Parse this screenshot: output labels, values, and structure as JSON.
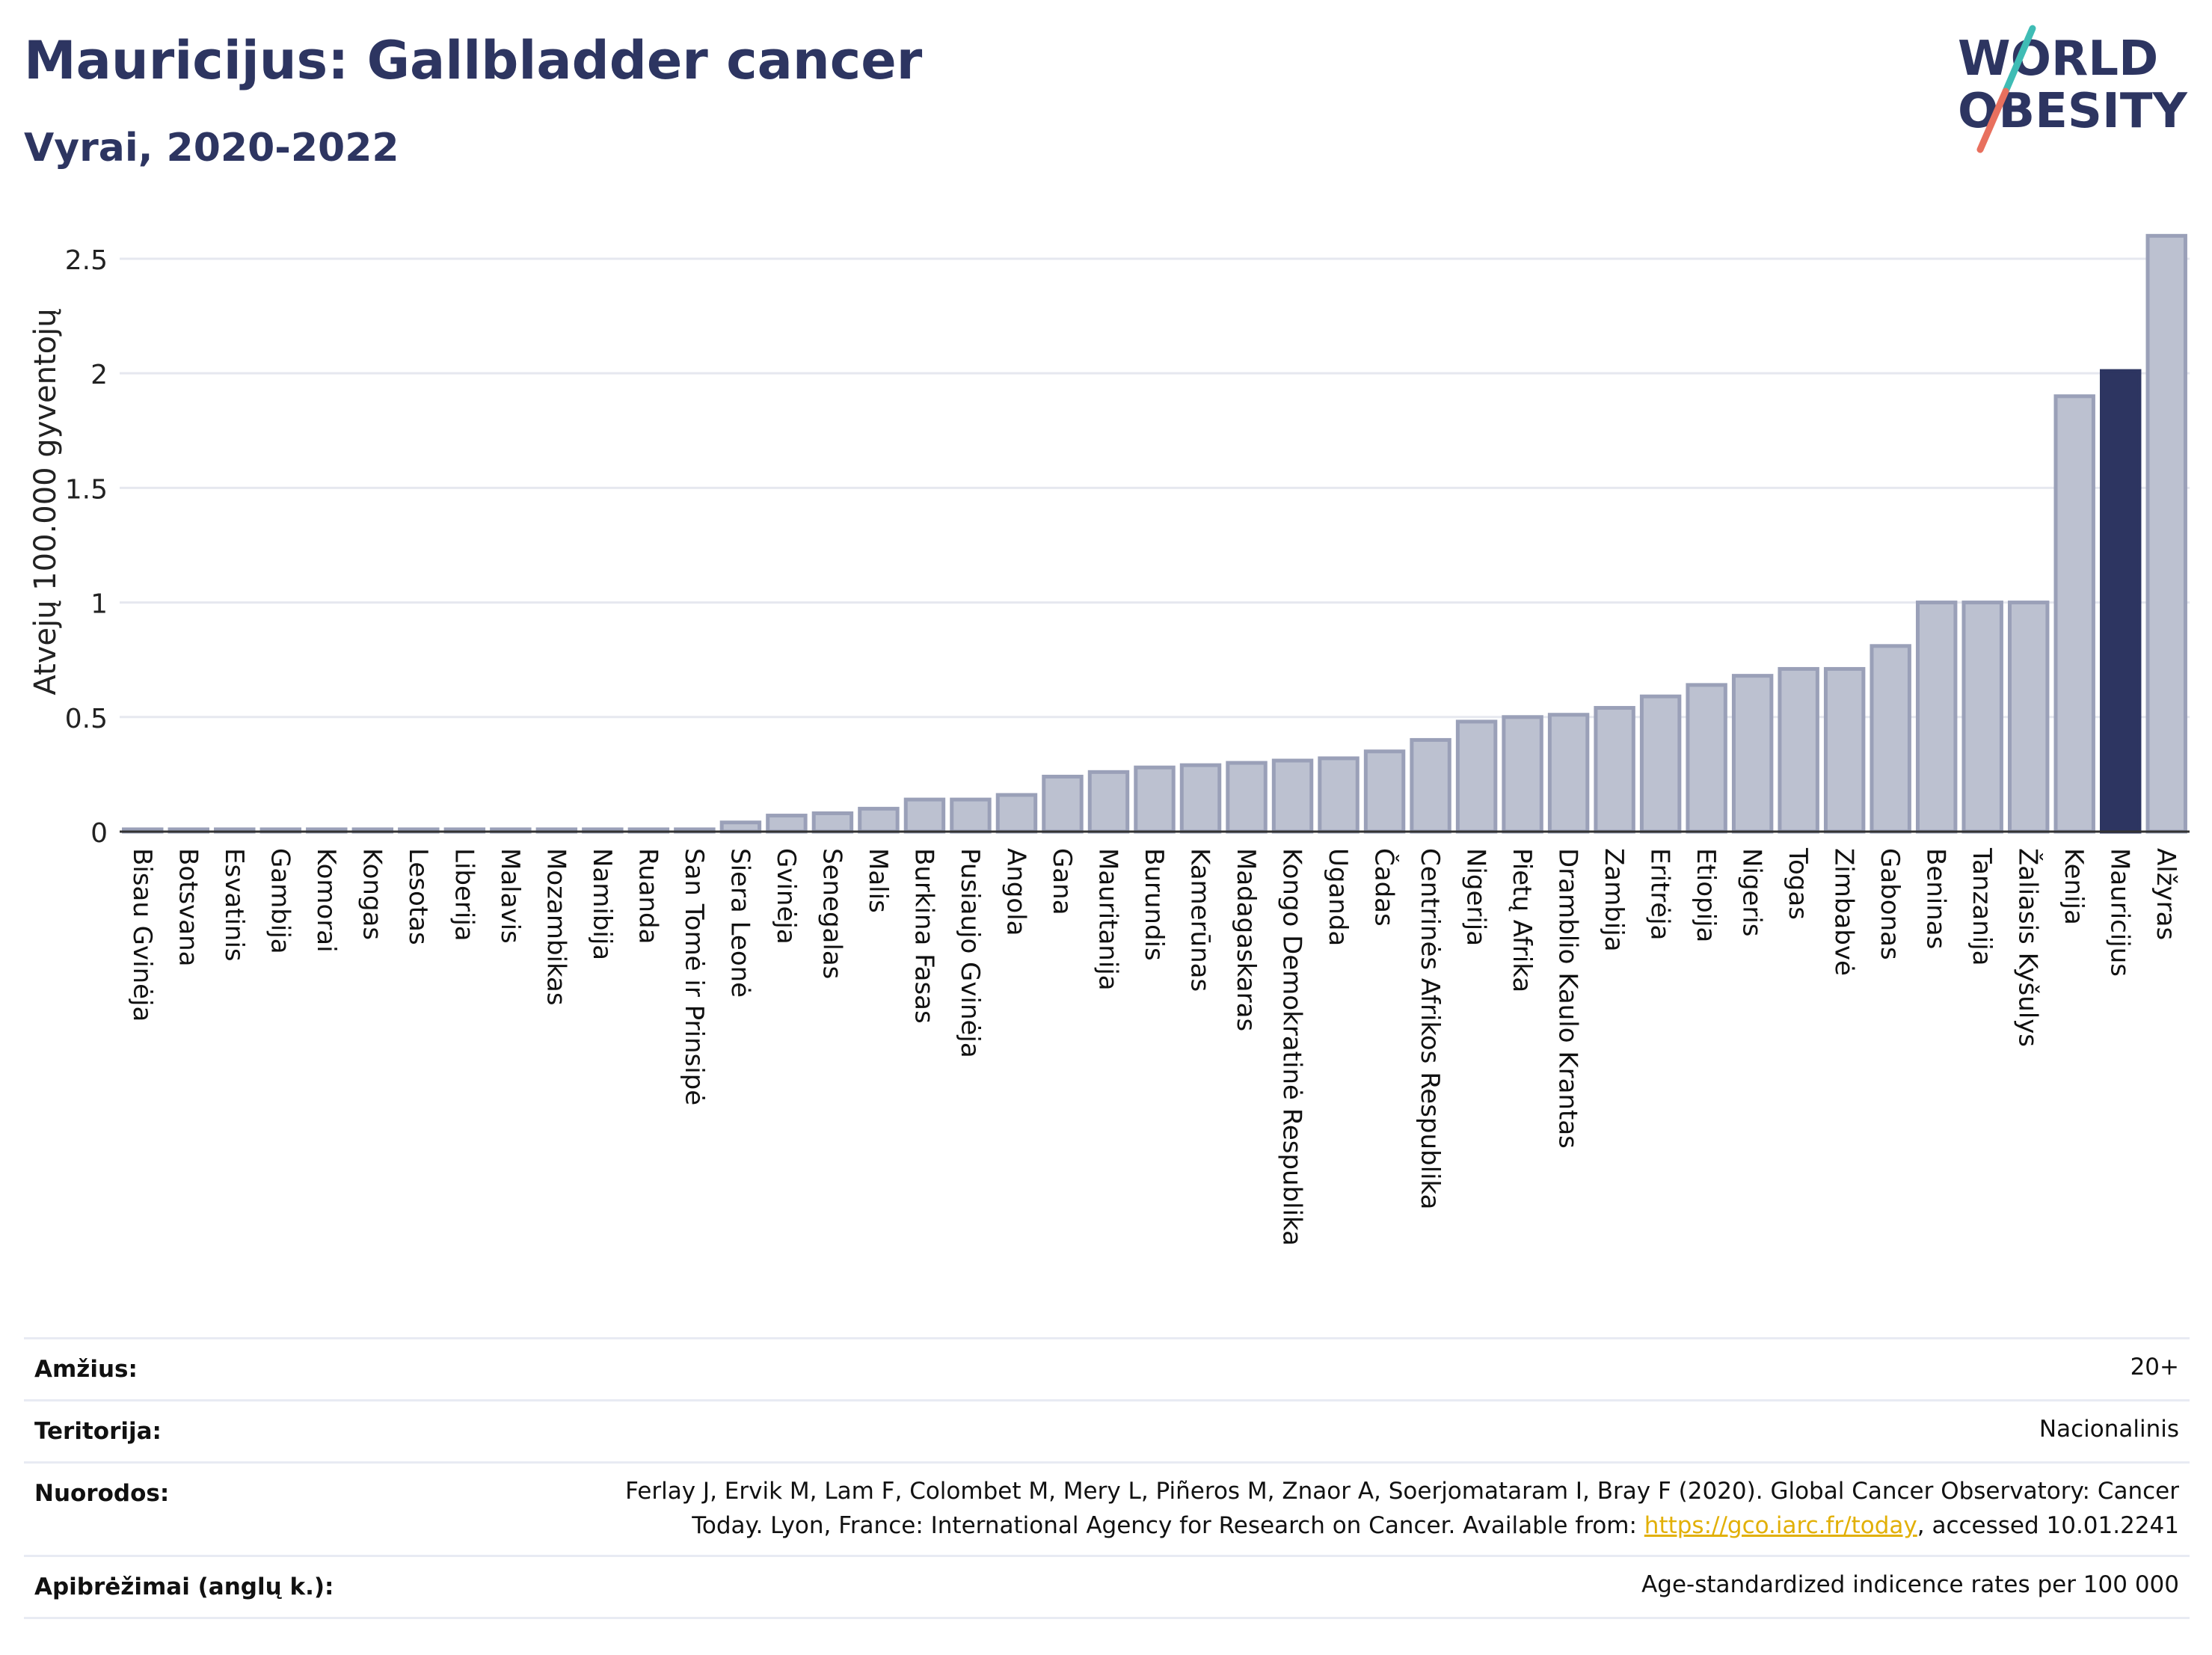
{
  "header": {
    "title": "Mauricijus: Gallbladder cancer",
    "subtitle": "Vyrai, 2020-2022"
  },
  "logo": {
    "line1": "WORLD",
    "line2": "OBESITY",
    "colors": {
      "text": "#2d3561",
      "slash_top": "#3fbcb5",
      "slash_bottom": "#e8705e"
    }
  },
  "chart_data": {
    "type": "bar",
    "ylabel": "Atvejų 100.000 gyventojų",
    "ylim": [
      0,
      2.65
    ],
    "yticks": [
      0,
      0.5,
      1,
      1.5,
      2,
      2.5
    ],
    "ytick_labels": [
      "0",
      "0.5",
      "1",
      "1.5",
      "2",
      "2.5"
    ],
    "grid": true,
    "highlight": "Mauricijus",
    "colors": {
      "bar": "#bcc1d0",
      "bar_border": "#9aa0b8",
      "highlight": "#2d3561"
    },
    "categories": [
      "Bisau Gvinėja",
      "Botsvana",
      "Esvatinis",
      "Gambija",
      "Komorai",
      "Kongas",
      "Lesotas",
      "Liberija",
      "Malavis",
      "Mozambikas",
      "Namibija",
      "Ruanda",
      "San Tomė ir Prinsipė",
      "Siera Leonė",
      "Gvinėja",
      "Senegalas",
      "Malis",
      "Burkina Fasas",
      "Pusiaujo Gvinėja",
      "Angola",
      "Gana",
      "Mauritanija",
      "Burundis",
      "Kamerūnas",
      "Madagaskaras",
      "Kongo Demokratinė Respublika",
      "Uganda",
      "Čadas",
      "Centrinės Afrikos Respublika",
      "Nigerija",
      "Pietų Afrika",
      "Dramblio Kaulo Krantas",
      "Zambija",
      "Eritrėja",
      "Etiopija",
      "Nigeris",
      "Togas",
      "Zimbabvė",
      "Gabonas",
      "Beninas",
      "Tanzanija",
      "Žaliasis Kyšulys",
      "Kenija",
      "Mauricijus",
      "Alžyras"
    ],
    "values": [
      0.01,
      0.01,
      0.01,
      0.01,
      0.01,
      0.01,
      0.01,
      0.01,
      0.01,
      0.01,
      0.01,
      0.01,
      0.01,
      0.04,
      0.07,
      0.08,
      0.1,
      0.14,
      0.14,
      0.16,
      0.24,
      0.26,
      0.28,
      0.29,
      0.3,
      0.31,
      0.32,
      0.35,
      0.4,
      0.48,
      0.5,
      0.51,
      0.54,
      0.59,
      0.64,
      0.68,
      0.71,
      0.71,
      0.81,
      1.0,
      1.0,
      1.0,
      1.9,
      2.01,
      2.6
    ]
  },
  "meta": {
    "age_label": "Amžius:",
    "age_value": "20+",
    "territory_label": "Teritorija:",
    "territory_value": "Nacionalinis",
    "refs_label": "Nuorodos:",
    "refs_line1": "Ferlay J, Ervik M, Lam F, Colombet M, Mery L, Piñeros M, Znaor A, Soerjomataram I, Bray F (2020). Global Cancer Observatory: Cancer",
    "refs_line2_pre": "Today. Lyon, France: International Agency for Research on Cancer. Available from: ",
    "refs_link": "https://gco.iarc.fr/today",
    "refs_line2_post": ", accessed 10.01.2241",
    "def_label": "Apibrėžimai (anglų k.):",
    "def_value": "Age-standardized indicence rates per 100 000"
  }
}
